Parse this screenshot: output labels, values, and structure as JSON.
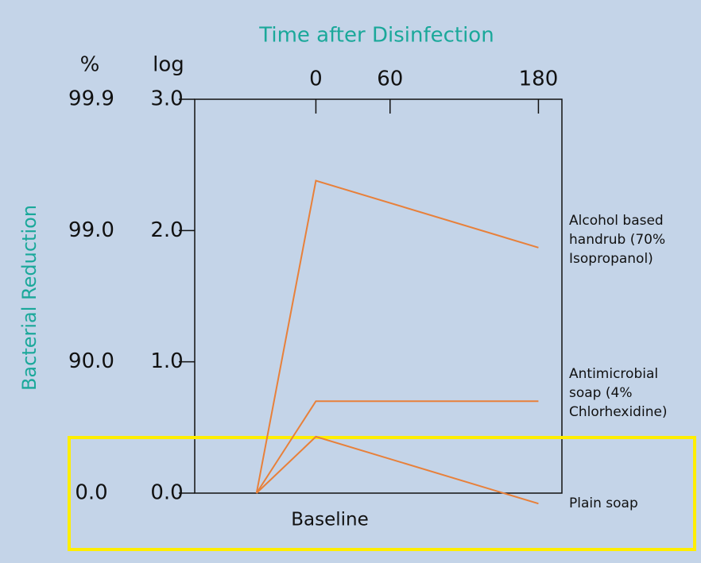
{
  "chart_data": {
    "type": "line",
    "title": "Time after Disinfection",
    "y_label": "Bacterial Reduction",
    "pct_header": "%",
    "log_header": "log",
    "x_annotation": "Baseline",
    "x": [
      -48,
      0,
      180
    ],
    "xlim": [
      -98,
      199
    ],
    "xticks": [
      0,
      60,
      180
    ],
    "ylim": [
      0,
      3
    ],
    "yticks": [
      {
        "value": 0,
        "label": "0.0"
      },
      {
        "value": 1,
        "label": "1.0"
      },
      {
        "value": 2,
        "label": "2.0"
      },
      {
        "value": 3,
        "label": "3.0"
      }
    ],
    "pct_ticks": [
      {
        "value": 0,
        "label": "0.0"
      },
      {
        "value": 1,
        "label": "90.0"
      },
      {
        "value": 2,
        "label": "99.0"
      },
      {
        "value": 3,
        "label": "99.9"
      }
    ],
    "series": [
      {
        "name": "Alcohol based handrub (70% Isopropanol)",
        "color": "#e8803a",
        "values": [
          0,
          2.38,
          1.87
        ]
      },
      {
        "name": "Antimicrobial soap (4% Chlorhexidine)",
        "color": "#e8803a",
        "values": [
          0,
          0.7,
          0.7
        ]
      },
      {
        "name": "Plain soap",
        "color": "#e8803a",
        "values": [
          0,
          0.43,
          -0.08
        ]
      }
    ]
  }
}
